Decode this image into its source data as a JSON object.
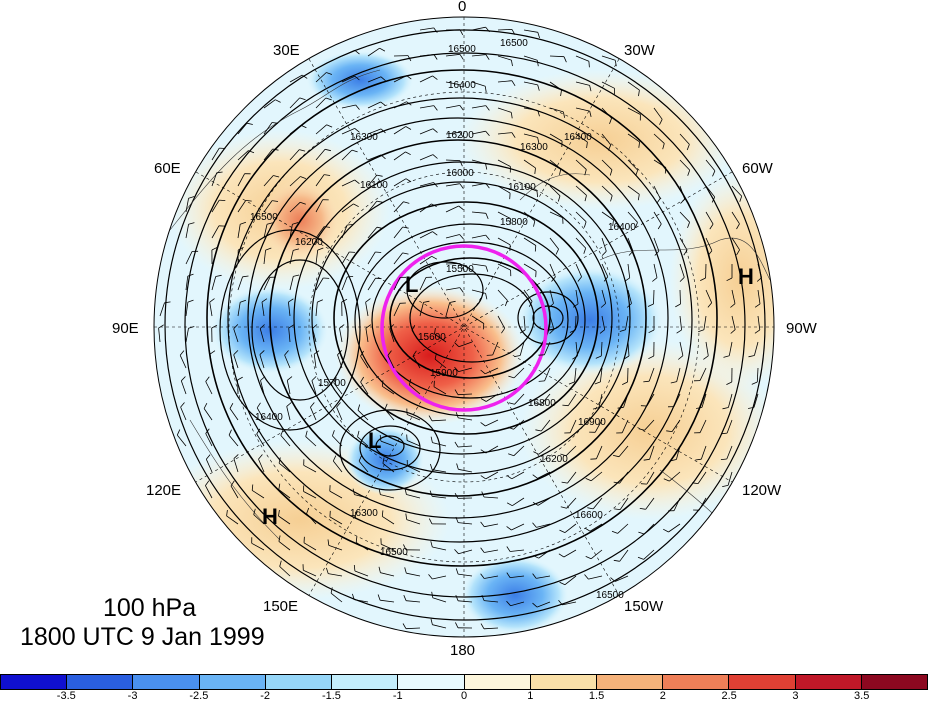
{
  "map": {
    "pressure_level": "100 hPa",
    "valid_time": "1800 UTC 9 Jan 1999",
    "longitude_labels": {
      "top": "0",
      "bottom": "180",
      "right_upper1": "30W",
      "right_upper2": "60W",
      "right_mid": "90W",
      "right_lower2": "120W",
      "right_lower1": "150W",
      "left_upper1": "30E",
      "left_upper2": "60E",
      "left_mid": "90E",
      "left_lower2": "120E",
      "left_lower1": "150E"
    },
    "contour_labels": [
      "16500",
      "16500",
      "16400",
      "16300",
      "16200",
      "16100",
      "16000",
      "16300",
      "16400",
      "16100",
      "15800",
      "16500",
      "16200",
      "15500",
      "15600",
      "15900",
      "15700",
      "16400",
      "16300",
      "16500",
      "16400",
      "16900",
      "16200",
      "16600",
      "16500",
      "16800"
    ],
    "pressure_centers": [
      "L",
      "L",
      "H",
      "H"
    ],
    "highlight_circle_color": "#ee22ee"
  },
  "colorbar": {
    "ticks": [
      "-3.5",
      "-3",
      "-2.5",
      "-2",
      "-1.5",
      "-1",
      "0",
      "1",
      "1.5",
      "2",
      "2.5",
      "3",
      "3.5"
    ],
    "colors": [
      "#1010d0",
      "#2a5fe0",
      "#4a90ef",
      "#6ab4f5",
      "#96d6f8",
      "#c4eefc",
      "#e8fafe",
      "#fdf6dc",
      "#fae0a8",
      "#f5b27a",
      "#ef7f58",
      "#e04034",
      "#c01828",
      "#8c0820"
    ]
  }
}
